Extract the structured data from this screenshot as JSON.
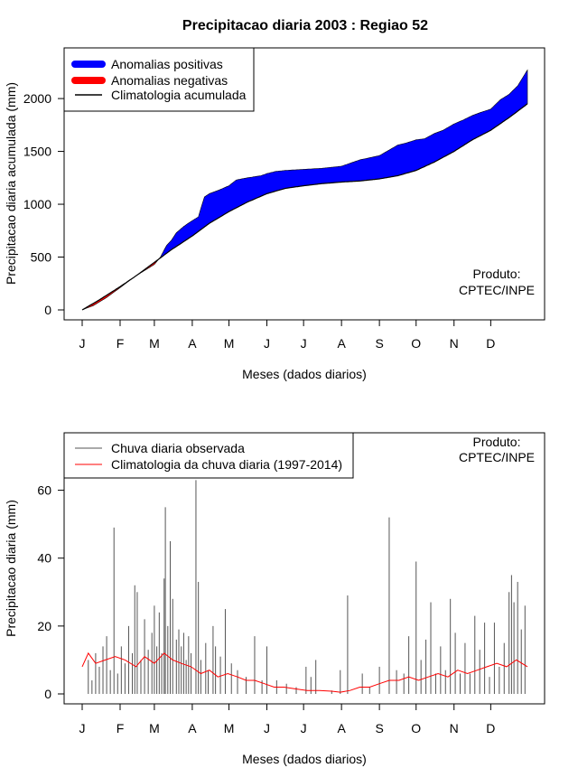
{
  "chart_data": [
    {
      "type": "area",
      "title": "Precipitacao diaria 2003 : Regiao 52",
      "xlabel": "Meses (dados diarios)",
      "ylabel": "Precipitacao diaria acumulada (mm)",
      "xlim": [
        1,
        365
      ],
      "ylim": [
        0,
        2300
      ],
      "y_ticks": [
        0,
        500,
        1000,
        1500,
        2000
      ],
      "month_labels": [
        "J",
        "F",
        "M",
        "A",
        "M",
        "J",
        "J",
        "A",
        "S",
        "O",
        "N",
        "D"
      ],
      "month_days": [
        1,
        32,
        60,
        91,
        121,
        152,
        182,
        213,
        244,
        274,
        305,
        335
      ],
      "legend": [
        {
          "label": "Anomalias positivas",
          "color": "#0000ff"
        },
        {
          "label": "Anomalias negativas",
          "color": "#ff0000"
        },
        {
          "label": "Climatologia acumulada",
          "color": "#000000"
        }
      ],
      "legend_position": "top-left",
      "credit": [
        "Produto:",
        "CPTEC/INPE"
      ],
      "credit_position": "bottom-right",
      "climatology": [
        [
          1,
          0
        ],
        [
          15,
          95
        ],
        [
          32,
          220
        ],
        [
          46,
          330
        ],
        [
          60,
          450
        ],
        [
          74,
          570
        ],
        [
          91,
          700
        ],
        [
          105,
          820
        ],
        [
          121,
          930
        ],
        [
          136,
          1020
        ],
        [
          152,
          1100
        ],
        [
          167,
          1150
        ],
        [
          182,
          1175
        ],
        [
          197,
          1195
        ],
        [
          213,
          1210
        ],
        [
          228,
          1220
        ],
        [
          244,
          1240
        ],
        [
          259,
          1270
        ],
        [
          274,
          1320
        ],
        [
          289,
          1400
        ],
        [
          305,
          1500
        ],
        [
          320,
          1610
        ],
        [
          335,
          1700
        ],
        [
          350,
          1820
        ],
        [
          365,
          1950
        ]
      ],
      "observed": [
        [
          1,
          0
        ],
        [
          10,
          40
        ],
        [
          20,
          110
        ],
        [
          32,
          210
        ],
        [
          40,
          280
        ],
        [
          46,
          330
        ],
        [
          53,
          380
        ],
        [
          60,
          430
        ],
        [
          65,
          500
        ],
        [
          70,
          610
        ],
        [
          74,
          660
        ],
        [
          78,
          730
        ],
        [
          84,
          790
        ],
        [
          91,
          845
        ],
        [
          96,
          880
        ],
        [
          98,
          960
        ],
        [
          101,
          1070
        ],
        [
          105,
          1100
        ],
        [
          112,
          1130
        ],
        [
          121,
          1175
        ],
        [
          127,
          1230
        ],
        [
          136,
          1250
        ],
        [
          147,
          1270
        ],
        [
          152,
          1290
        ],
        [
          159,
          1310
        ],
        [
          167,
          1320
        ],
        [
          182,
          1330
        ],
        [
          197,
          1340
        ],
        [
          213,
          1360
        ],
        [
          228,
          1420
        ],
        [
          236,
          1440
        ],
        [
          244,
          1460
        ],
        [
          259,
          1560
        ],
        [
          266,
          1580
        ],
        [
          274,
          1610
        ],
        [
          281,
          1620
        ],
        [
          289,
          1670
        ],
        [
          296,
          1700
        ],
        [
          305,
          1760
        ],
        [
          313,
          1800
        ],
        [
          320,
          1840
        ],
        [
          327,
          1870
        ],
        [
          335,
          1900
        ],
        [
          343,
          1990
        ],
        [
          350,
          2040
        ],
        [
          357,
          2120
        ],
        [
          365,
          2270
        ]
      ]
    },
    {
      "type": "line",
      "xlabel": "Meses (dados diarios)",
      "ylabel": "Precipitacao diaria (mm)",
      "xlim": [
        1,
        365
      ],
      "ylim": [
        0,
        74
      ],
      "y_ticks": [
        0,
        20,
        40,
        60
      ],
      "month_labels": [
        "J",
        "F",
        "M",
        "A",
        "M",
        "J",
        "J",
        "A",
        "S",
        "O",
        "N",
        "D"
      ],
      "month_days": [
        1,
        32,
        60,
        91,
        121,
        152,
        182,
        213,
        244,
        274,
        305,
        335
      ],
      "legend": [
        {
          "label": "Chuva diaria observada",
          "color": "#555555"
        },
        {
          "label": "Climatologia da chuva diaria (1997-2014)",
          "color": "#ff0000"
        }
      ],
      "legend_position": "top-left",
      "credit": [
        "Produto:",
        "CPTEC/INPE"
      ],
      "credit_position": "top-right",
      "daily_observed": [
        [
          6,
          10
        ],
        [
          9,
          4
        ],
        [
          12,
          12
        ],
        [
          15,
          8
        ],
        [
          18,
          14
        ],
        [
          21,
          17
        ],
        [
          24,
          7
        ],
        [
          27,
          49
        ],
        [
          30,
          6
        ],
        [
          33,
          14
        ],
        [
          36,
          9
        ],
        [
          39,
          20
        ],
        [
          42,
          12
        ],
        [
          44,
          32
        ],
        [
          46,
          30
        ],
        [
          49,
          10
        ],
        [
          52,
          22
        ],
        [
          55,
          13
        ],
        [
          58,
          18
        ],
        [
          60,
          26
        ],
        [
          62,
          14
        ],
        [
          64,
          24
        ],
        [
          66,
          12
        ],
        [
          68,
          34
        ],
        [
          69,
          55
        ],
        [
          71,
          20
        ],
        [
          73,
          45
        ],
        [
          75,
          28
        ],
        [
          78,
          16
        ],
        [
          80,
          19
        ],
        [
          82,
          14
        ],
        [
          84,
          18
        ],
        [
          86,
          10
        ],
        [
          88,
          17
        ],
        [
          90,
          12
        ],
        [
          94,
          63
        ],
        [
          96,
          33
        ],
        [
          98,
          10
        ],
        [
          102,
          15
        ],
        [
          104,
          7
        ],
        [
          108,
          20
        ],
        [
          110,
          14
        ],
        [
          114,
          11
        ],
        [
          118,
          25
        ],
        [
          123,
          9
        ],
        [
          128,
          7
        ],
        [
          135,
          5
        ],
        [
          142,
          17
        ],
        [
          148,
          4
        ],
        [
          152,
          14
        ],
        [
          160,
          4
        ],
        [
          168,
          3
        ],
        [
          176,
          2
        ],
        [
          184,
          8
        ],
        [
          188,
          5
        ],
        [
          192,
          10
        ],
        [
          205,
          1
        ],
        [
          212,
          7
        ],
        [
          218,
          29
        ],
        [
          230,
          6
        ],
        [
          236,
          2
        ],
        [
          244,
          8
        ],
        [
          252,
          52
        ],
        [
          258,
          7
        ],
        [
          264,
          6
        ],
        [
          268,
          17
        ],
        [
          274,
          39
        ],
        [
          278,
          10
        ],
        [
          282,
          16
        ],
        [
          286,
          27
        ],
        [
          290,
          6
        ],
        [
          294,
          14
        ],
        [
          298,
          7
        ],
        [
          302,
          28
        ],
        [
          306,
          18
        ],
        [
          310,
          6
        ],
        [
          314,
          15
        ],
        [
          318,
          6
        ],
        [
          322,
          23
        ],
        [
          326,
          13
        ],
        [
          330,
          21
        ],
        [
          334,
          5
        ],
        [
          338,
          21
        ],
        [
          342,
          8
        ],
        [
          346,
          15
        ],
        [
          350,
          30
        ],
        [
          352,
          35
        ],
        [
          354,
          27
        ],
        [
          357,
          33
        ],
        [
          360,
          19
        ],
        [
          363,
          26
        ]
      ],
      "daily_climatology": [
        [
          1,
          8
        ],
        [
          6,
          12
        ],
        [
          12,
          9
        ],
        [
          20,
          10
        ],
        [
          28,
          11
        ],
        [
          36,
          10
        ],
        [
          45,
          8
        ],
        [
          52,
          11
        ],
        [
          60,
          9
        ],
        [
          68,
          12
        ],
        [
          75,
          10
        ],
        [
          82,
          9
        ],
        [
          90,
          8
        ],
        [
          98,
          6
        ],
        [
          105,
          7
        ],
        [
          112,
          5
        ],
        [
          120,
          6
        ],
        [
          128,
          5
        ],
        [
          135,
          4
        ],
        [
          142,
          4
        ],
        [
          150,
          3
        ],
        [
          158,
          2
        ],
        [
          166,
          2
        ],
        [
          175,
          1.5
        ],
        [
          185,
          1
        ],
        [
          195,
          1
        ],
        [
          205,
          0.8
        ],
        [
          212,
          0.5
        ],
        [
          220,
          1
        ],
        [
          228,
          2
        ],
        [
          236,
          2
        ],
        [
          244,
          3
        ],
        [
          252,
          4
        ],
        [
          260,
          4
        ],
        [
          268,
          5
        ],
        [
          276,
          4
        ],
        [
          284,
          5
        ],
        [
          292,
          6
        ],
        [
          300,
          5
        ],
        [
          308,
          7
        ],
        [
          316,
          6
        ],
        [
          324,
          7
        ],
        [
          332,
          8
        ],
        [
          340,
          9
        ],
        [
          348,
          8
        ],
        [
          356,
          10
        ],
        [
          365,
          8
        ]
      ]
    }
  ]
}
